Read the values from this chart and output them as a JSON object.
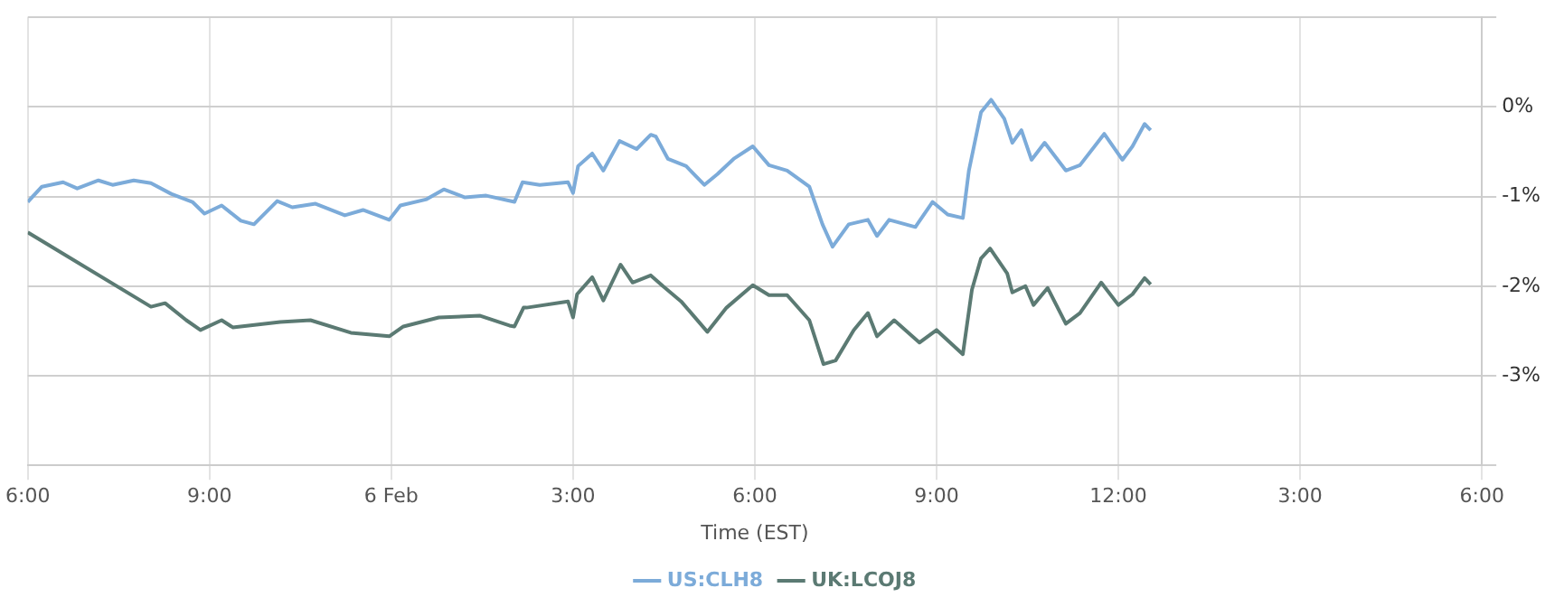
{
  "chart_data": {
    "type": "line",
    "xlabel": "Time (EST)",
    "xlim": [
      "--02-05T18:00",
      "--02-06T18:00"
    ],
    "xticks": [
      {
        "value": "--02-05T18:00",
        "label": "6:00"
      },
      {
        "value": "--02-05T21:00",
        "label": "9:00"
      },
      {
        "value": "--02-06T00:00",
        "label": "6 Feb"
      },
      {
        "value": "--02-06T03:00",
        "label": "3:00"
      },
      {
        "value": "--02-06T06:00",
        "label": "6:00"
      },
      {
        "value": "--02-06T09:00",
        "label": "9:00"
      },
      {
        "value": "--02-06T12:00",
        "label": "12:00"
      },
      {
        "value": "--02-06T15:00",
        "label": "3:00"
      },
      {
        "value": "--02-06T18:00",
        "label": "6:00"
      }
    ],
    "ylim": [
      -4,
      1
    ],
    "yticks": [
      {
        "value": 1,
        "label": null
      },
      {
        "value": 0,
        "label": "0%"
      },
      {
        "value": -1,
        "label": "-1%"
      },
      {
        "value": -2,
        "label": "-2%"
      },
      {
        "value": -3,
        "label": "-3%"
      },
      {
        "value": -4,
        "label": null
      }
    ],
    "grid": true,
    "legend": "bottom",
    "marker": "none",
    "line_style": "solid",
    "series": [
      {
        "name": "US:CLH8",
        "color": "#7cabd9",
        "x": [
          "--02-05T18:00",
          "--02-05T18:14",
          "--02-05T18:35",
          "--02-05T18:49",
          "--02-05T19:10",
          "--02-05T19:24",
          "--02-05T19:45",
          "--02-05T20:02",
          "--02-05T20:22",
          "--02-05T20:43",
          "--02-05T20:55",
          "--02-05T21:12",
          "--02-05T21:31",
          "--02-05T21:44",
          "--02-05T22:07",
          "--02-05T22:22",
          "--02-05T22:45",
          "--02-05T23:14",
          "--02-05T23:32",
          "--02-05T23:58",
          "--02-06T00:09",
          "--02-06T00:35",
          "--02-06T00:52",
          "--02-06T01:13",
          "--02-06T01:34",
          "--02-06T02:02",
          "--02-06T02:10",
          "--02-06T02:27",
          "--02-06T02:55",
          "--02-06T03:00",
          "--02-06T03:05",
          "--02-06T03:19",
          "--02-06T03:30",
          "--02-06T03:46",
          "--02-06T04:03",
          "--02-06T04:17",
          "--02-06T04:22",
          "--02-06T04:34",
          "--02-06T04:52",
          "--02-06T05:10",
          "--02-06T05:23",
          "--02-06T05:39",
          "--02-06T05:58",
          "--02-06T06:14",
          "--02-06T06:32",
          "--02-06T06:54",
          "--02-06T07:07",
          "--02-06T07:17",
          "--02-06T07:33",
          "--02-06T07:52",
          "--02-06T08:01",
          "--02-06T08:13",
          "--02-06T08:39",
          "--02-06T08:56",
          "--02-06T09:11",
          "--02-06T09:26",
          "--02-06T09:32",
          "--02-06T09:44",
          "--02-06T09:54",
          "--02-06T10:07",
          "--02-06T10:15",
          "--02-06T10:24",
          "--02-06T10:34",
          "--02-06T10:47",
          "--02-06T11:08",
          "--02-06T11:22",
          "--02-06T11:46",
          "--02-06T12:04",
          "--02-06T12:14",
          "--02-06T12:26",
          "--02-06T12:32"
        ],
        "values": [
          -1.06,
          -0.89,
          -0.84,
          -0.91,
          -0.82,
          -0.87,
          -0.82,
          -0.85,
          -0.97,
          -1.06,
          -1.19,
          -1.1,
          -1.27,
          -1.31,
          -1.05,
          -1.12,
          -1.08,
          -1.21,
          -1.15,
          -1.26,
          -1.1,
          -1.03,
          -0.92,
          -1.01,
          -0.99,
          -1.06,
          -0.84,
          -0.87,
          -0.84,
          -0.96,
          -0.66,
          -0.52,
          -0.71,
          -0.38,
          -0.47,
          -0.31,
          -0.33,
          -0.58,
          -0.66,
          -0.87,
          -0.75,
          -0.58,
          -0.44,
          -0.65,
          -0.71,
          -0.89,
          -1.31,
          -1.56,
          -1.31,
          -1.26,
          -1.44,
          -1.26,
          -1.34,
          -1.06,
          -1.2,
          -1.24,
          -0.71,
          -0.06,
          0.08,
          -0.13,
          -0.4,
          -0.26,
          -0.59,
          -0.4,
          -0.71,
          -0.65,
          -0.3,
          -0.59,
          -0.44,
          -0.19,
          -0.26
        ]
      },
      {
        "name": "UK:LCOJ8",
        "color": "#5b7a73",
        "x": [
          "--02-05T18:00",
          "--02-05T20:02",
          "--02-05T20:16",
          "--02-05T20:37",
          "--02-05T20:51",
          "--02-05T21:12",
          "--02-05T21:23",
          "--02-05T22:10",
          "--02-05T22:40",
          "--02-05T23:20",
          "--02-05T23:58",
          "--02-06T00:12",
          "--02-06T00:47",
          "--02-06T01:28",
          "--02-06T01:57",
          "--02-06T02:02",
          "--02-06T02:11",
          "--02-06T02:14",
          "--02-06T02:55",
          "--02-06T03:00",
          "--02-06T03:04",
          "--02-06T03:19",
          "--02-06T03:30",
          "--02-06T03:47",
          "--02-06T03:59",
          "--02-06T04:17",
          "--02-06T04:29",
          "--02-06T04:47",
          "--02-06T05:13",
          "--02-06T05:32",
          "--02-06T05:58",
          "--02-06T06:14",
          "--02-06T06:32",
          "--02-06T06:54",
          "--02-06T07:08",
          "--02-06T07:20",
          "--02-06T07:38",
          "--02-06T07:52",
          "--02-06T08:01",
          "--02-06T08:18",
          "--02-06T08:43",
          "--02-06T09:00",
          "--02-06T09:26",
          "--02-06T09:35",
          "--02-06T09:44",
          "--02-06T09:53",
          "--02-06T10:10",
          "--02-06T10:15",
          "--02-06T10:28",
          "--02-06T10:36",
          "--02-06T10:50",
          "--02-06T11:08",
          "--02-06T11:22",
          "--02-06T11:43",
          "--02-06T12:00",
          "--02-06T12:14",
          "--02-06T12:26",
          "--02-06T12:32"
        ],
        "values": [
          -1.4,
          -2.23,
          -2.19,
          -2.38,
          -2.49,
          -2.38,
          -2.46,
          -2.4,
          -2.38,
          -2.52,
          -2.56,
          -2.45,
          -2.35,
          -2.33,
          -2.44,
          -2.45,
          -2.24,
          -2.24,
          -2.17,
          -2.35,
          -2.09,
          -1.9,
          -2.16,
          -1.76,
          -1.96,
          -1.88,
          -2.0,
          -2.17,
          -2.51,
          -2.24,
          -1.99,
          -2.1,
          -2.1,
          -2.38,
          -2.87,
          -2.83,
          -2.49,
          -2.3,
          -2.56,
          -2.38,
          -2.63,
          -2.49,
          -2.76,
          -2.04,
          -1.69,
          -1.58,
          -1.86,
          -2.07,
          -2.0,
          -2.21,
          -2.02,
          -2.42,
          -2.3,
          -1.96,
          -2.21,
          -2.09,
          -1.91,
          -1.98
        ]
      }
    ]
  }
}
